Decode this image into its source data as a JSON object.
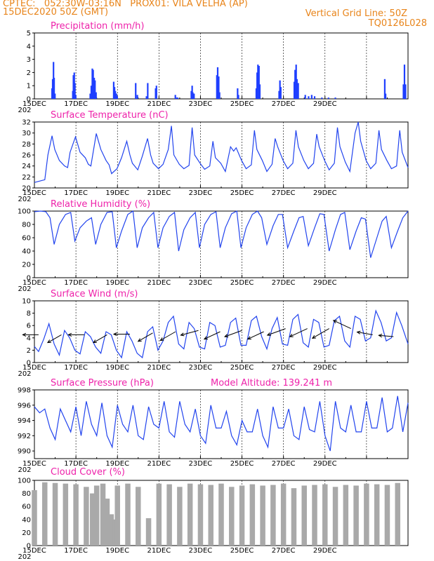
{
  "header": {
    "line1": "CPTEC:   052:30W-03:16N   PROX01: VILA VELHA (AP)",
    "line2": "15DEC2020 50Z (GMT)",
    "grid_note": "Vertical Grid Line: 50Z",
    "run_id": "TQ0126L028"
  },
  "chart_data": [
    {
      "type": "bar",
      "title": "Precipitation (mm/h)",
      "ylim": [
        0,
        5
      ],
      "yticks": [
        "0",
        "1",
        "2",
        "3",
        "4",
        "5"
      ],
      "x_tick_labels": [
        "15DEC",
        "17DEC",
        "19DEC",
        "21DEC",
        "23DEC",
        "25DEC",
        "27DEC",
        "29DEC"
      ],
      "x_year_label": "202",
      "color": "#1f3fff",
      "x_days": [
        0.85,
        0.88,
        0.92,
        0.95,
        0.99,
        1.85,
        1.88,
        1.92,
        1.95,
        1.99,
        2.69,
        2.74,
        2.79,
        2.83,
        2.88,
        2.92,
        2.97,
        3.82,
        3.86,
        3.9,
        3.95,
        3.99,
        4.88,
        4.96,
        5.4,
        5.46,
        5.84,
        5.88,
        6.79,
        6.86,
        6.9,
        7.56,
        7.6,
        7.63,
        7.69,
        8.79,
        8.83,
        8.88,
        8.92,
        9.79,
        9.83,
        10.69,
        10.73,
        10.77,
        10.82,
        10.86,
        11.79,
        11.83,
        11.87,
        12.52,
        12.56,
        12.61,
        12.65,
        12.71,
        13.05,
        13.21,
        13.36,
        13.5,
        13.85,
        14.17,
        14.5,
        16.88,
        16.92,
        17.78,
        17.83,
        17.88
      ],
      "values": [
        0.8,
        1.5,
        2.8,
        1.6,
        0.4,
        0.6,
        1.8,
        2.0,
        1.2,
        0.3,
        0.4,
        1.0,
        2.3,
        2.2,
        1.6,
        1.4,
        0.5,
        1.3,
        0.9,
        0.6,
        0.4,
        0.2,
        1.2,
        0.3,
        0.2,
        1.2,
        0.8,
        1.0,
        0.3,
        0.1,
        0.1,
        0.6,
        1.0,
        0.5,
        0.4,
        1.8,
        2.4,
        1.7,
        0.5,
        0.8,
        0.3,
        0.8,
        2.0,
        2.6,
        2.5,
        1.1,
        0.6,
        1.4,
        0.9,
        1.3,
        2.2,
        2.6,
        1.5,
        1.2,
        0.3,
        0.2,
        0.3,
        0.2,
        0.1,
        0.1,
        0.1,
        1.5,
        0.4,
        1.1,
        2.6,
        1.1
      ]
    },
    {
      "type": "line",
      "title": "Surface Temperature (nC)",
      "ylim": [
        20,
        32
      ],
      "yticks": [
        "20",
        "22",
        "24",
        "26",
        "28",
        "30",
        "32"
      ],
      "x_tick_labels": [
        "15DEC",
        "17DEC",
        "19DEC",
        "21DEC",
        "23DEC",
        "25DEC",
        "27DEC",
        "29DEC"
      ],
      "x_year_label": "202",
      "color": "#2244ee",
      "x_days": [
        0.0,
        0.5,
        0.65,
        0.85,
        0.98,
        1.2,
        1.45,
        1.6,
        1.72,
        1.98,
        2.2,
        2.45,
        2.6,
        2.72,
        2.98,
        3.2,
        3.45,
        3.6,
        3.72,
        3.98,
        4.2,
        4.45,
        4.6,
        4.72,
        4.98,
        5.2,
        5.45,
        5.6,
        5.72,
        5.98,
        6.2,
        6.45,
        6.6,
        6.72,
        6.98,
        7.2,
        7.45,
        7.6,
        7.72,
        7.98,
        8.2,
        8.45,
        8.6,
        8.72,
        8.98,
        9.2,
        9.45,
        9.6,
        9.72,
        9.98,
        10.2,
        10.45,
        10.6,
        10.72,
        10.98,
        11.2,
        11.45,
        11.6,
        11.72,
        11.98,
        12.2,
        12.45,
        12.6,
        12.72,
        12.98,
        13.2,
        13.45,
        13.6,
        13.72,
        13.98,
        14.2,
        14.45,
        14.6,
        14.72,
        14.98,
        15.2,
        15.45,
        15.6,
        15.72,
        15.98,
        16.2,
        16.45,
        16.6,
        16.72,
        16.98,
        17.2,
        17.45,
        17.6,
        17.72,
        18.0
      ],
      "values": [
        21.0,
        21.5,
        26.0,
        29.5,
        27.0,
        25.0,
        24.0,
        23.7,
        26.5,
        29.3,
        26.5,
        25.5,
        24.3,
        24.0,
        29.9,
        27.0,
        25.0,
        24.2,
        22.6,
        23.5,
        25.5,
        28.5,
        26.0,
        24.5,
        23.3,
        25.8,
        29.0,
        26.0,
        24.5,
        23.5,
        24.3,
        27.0,
        31.3,
        26.0,
        24.3,
        23.5,
        24.1,
        31.0,
        26.0,
        24.5,
        23.4,
        24.0,
        28.5,
        25.5,
        24.5,
        23.0,
        27.5,
        26.7,
        27.3,
        25.0,
        23.5,
        24.2,
        30.5,
        27.0,
        25.0,
        23.0,
        24.3,
        29.0,
        27.5,
        25.0,
        23.5,
        24.5,
        30.5,
        27.5,
        25.0,
        23.5,
        24.5,
        29.8,
        27.5,
        25.0,
        23.3,
        24.5,
        31.0,
        27.5,
        24.7,
        23.0,
        30.0,
        32.0,
        28.5,
        25.0,
        23.5,
        24.5,
        30.5,
        27.0,
        25.0,
        23.5,
        24.0,
        30.5,
        26.5,
        23.7
      ]
    },
    {
      "type": "line",
      "title": "Relative Humidity (%)",
      "ylim": [
        0,
        100
      ],
      "yticks": [
        "0",
        "20",
        "40",
        "60",
        "80",
        "100"
      ],
      "x_tick_labels": [
        "15DEC",
        "17DEC",
        "19DEC",
        "21DEC",
        "23DEC",
        "25DEC",
        "27DEC",
        "29DEC"
      ],
      "x_year_label": "202",
      "color": "#2244ee",
      "x_days": [
        0.0,
        0.3,
        0.55,
        0.75,
        0.95,
        1.2,
        1.5,
        1.75,
        1.95,
        2.2,
        2.5,
        2.75,
        2.95,
        3.2,
        3.5,
        3.75,
        3.95,
        4.2,
        4.5,
        4.75,
        4.95,
        5.2,
        5.5,
        5.75,
        5.95,
        6.2,
        6.5,
        6.75,
        6.95,
        7.2,
        7.5,
        7.75,
        7.95,
        8.2,
        8.5,
        8.75,
        8.95,
        9.2,
        9.5,
        9.75,
        9.95,
        10.2,
        10.5,
        10.75,
        10.95,
        11.2,
        11.5,
        11.75,
        11.95,
        12.2,
        12.5,
        12.75,
        12.95,
        13.2,
        13.5,
        13.75,
        13.95,
        14.2,
        14.5,
        14.75,
        14.95,
        15.2,
        15.5,
        15.75,
        15.95,
        16.2,
        16.5,
        16.75,
        16.95,
        17.2,
        17.5,
        17.75,
        18.0
      ],
      "values": [
        99,
        100,
        99,
        90,
        50,
        80,
        95,
        98,
        55,
        75,
        85,
        90,
        50,
        80,
        98,
        99,
        45,
        70,
        95,
        100,
        45,
        75,
        90,
        98,
        45,
        75,
        92,
        98,
        40,
        72,
        90,
        98,
        45,
        80,
        95,
        99,
        45,
        75,
        96,
        100,
        45,
        75,
        95,
        100,
        90,
        50,
        78,
        95,
        95,
        45,
        70,
        90,
        92,
        48,
        75,
        96,
        95,
        40,
        72,
        95,
        98,
        42,
        70,
        90,
        88,
        30,
        60,
        85,
        92,
        45,
        70,
        90,
        100
      ]
    },
    {
      "type": "line",
      "title": "Surface Wind (m/s)",
      "ylim": [
        0,
        10
      ],
      "yticks": [
        "0",
        "2",
        "4",
        "6",
        "8",
        "10"
      ],
      "x_tick_labels": [
        "15DEC",
        "17DEC",
        "19DEC",
        "21DEC",
        "23DEC",
        "25DEC",
        "27DEC",
        "29DEC"
      ],
      "x_year_label": "202",
      "color": "#2244ee",
      "x_days": [
        0.0,
        0.2,
        0.45,
        0.7,
        0.95,
        1.2,
        1.45,
        1.7,
        1.95,
        2.2,
        2.45,
        2.7,
        2.95,
        3.2,
        3.45,
        3.7,
        3.95,
        4.2,
        4.45,
        4.7,
        4.95,
        5.2,
        5.45,
        5.7,
        5.95,
        6.2,
        6.45,
        6.7,
        6.95,
        7.2,
        7.45,
        7.7,
        7.95,
        8.2,
        8.45,
        8.7,
        8.95,
        9.2,
        9.45,
        9.7,
        9.95,
        10.2,
        10.45,
        10.7,
        10.95,
        11.2,
        11.45,
        11.7,
        11.95,
        12.2,
        12.45,
        12.7,
        12.95,
        13.2,
        13.45,
        13.7,
        13.95,
        14.2,
        14.45,
        14.7,
        14.95,
        15.2,
        15.45,
        15.7,
        15.95,
        16.2,
        16.45,
        16.7,
        16.95,
        17.2,
        17.45,
        17.7,
        18.0
      ],
      "values": [
        2.6,
        1.8,
        3.8,
        6.3,
        3.0,
        1.2,
        5.2,
        4.0,
        2.0,
        1.4,
        5.0,
        4.2,
        2.5,
        1.5,
        5.0,
        4.5,
        2.0,
        0.8,
        5.0,
        3.5,
        1.5,
        0.8,
        5.0,
        5.8,
        2.0,
        3.5,
        6.5,
        7.5,
        3.0,
        2.2,
        6.5,
        5.5,
        2.5,
        2.2,
        6.5,
        6.0,
        2.5,
        2.8,
        6.5,
        7.2,
        2.8,
        2.8,
        6.8,
        7.5,
        4.2,
        2.2,
        5.5,
        7.3,
        3.0,
        2.8,
        7.0,
        7.8,
        3.2,
        2.5,
        7.0,
        6.5,
        2.5,
        2.8,
        6.8,
        7.5,
        3.5,
        2.5,
        7.5,
        7.0,
        3.5,
        4.0,
        8.4,
        6.5,
        3.5,
        4.0,
        8.1,
        6.0,
        3.0
      ],
      "arrows": {
        "x_days": [
          0.2,
          1.3,
          2.4,
          3.5,
          4.6,
          5.7,
          6.8,
          7.9,
          8.95,
          10.0,
          11.05,
          12.1,
          13.15,
          14.2,
          15.25,
          16.3,
          17.3
        ],
        "from_dir_deg": [
          90,
          60,
          90,
          60,
          90,
          60,
          60,
          75,
          65,
          70,
          65,
          70,
          65,
          60,
          115,
          100,
          95
        ],
        "speed": [
          4.5,
          4.5,
          4.5,
          4.5,
          4.6,
          4.8,
          5.0,
          5.2,
          5.0,
          5.2,
          5.0,
          5.5,
          5.5,
          5.5,
          5.5,
          4.5,
          4.2
        ]
      }
    },
    {
      "type": "line",
      "title": "Surface Pressure (hPa)",
      "annotation": "Model Altitude: 139.241  m",
      "ylim": [
        989,
        998
      ],
      "yticks": [
        "990",
        "992",
        "994",
        "996",
        "998"
      ],
      "x_tick_labels": [
        "15DEC",
        "17DEC",
        "19DEC",
        "21DEC",
        "23DEC",
        "25DEC",
        "27DEC",
        "29DEC"
      ],
      "x_year_label": "202",
      "color": "#2244ee",
      "x_days": [
        0.0,
        0.25,
        0.5,
        0.75,
        1.0,
        1.25,
        1.5,
        1.75,
        2.0,
        2.25,
        2.5,
        2.75,
        3.0,
        3.25,
        3.5,
        3.75,
        4.0,
        4.25,
        4.5,
        4.75,
        5.0,
        5.25,
        5.5,
        5.75,
        6.0,
        6.25,
        6.5,
        6.75,
        7.0,
        7.25,
        7.5,
        7.75,
        8.0,
        8.25,
        8.5,
        8.75,
        9.0,
        9.25,
        9.5,
        9.75,
        10.0,
        10.25,
        10.5,
        10.75,
        11.0,
        11.25,
        11.5,
        11.75,
        12.0,
        12.25,
        12.5,
        12.75,
        13.0,
        13.25,
        13.5,
        13.75,
        14.0,
        14.25,
        14.5,
        14.75,
        15.0,
        15.25,
        15.5,
        15.75,
        16.0,
        16.25,
        16.5,
        16.75,
        17.0,
        17.25,
        17.5,
        17.75,
        18.0
      ],
      "values": [
        995.8,
        995.0,
        995.5,
        993.0,
        991.5,
        995.5,
        994.0,
        992.5,
        995.8,
        992.0,
        996.5,
        993.5,
        992.0,
        996.3,
        992.0,
        990.5,
        996.0,
        993.5,
        992.5,
        996.0,
        992.0,
        991.5,
        995.8,
        993.5,
        993.0,
        996.5,
        992.5,
        991.8,
        996.5,
        993.5,
        992.5,
        995.5,
        992.0,
        991.0,
        996.0,
        993.0,
        993.0,
        995.2,
        992.0,
        990.8,
        994.0,
        992.5,
        992.5,
        995.5,
        992.0,
        990.5,
        995.8,
        993.0,
        993.0,
        995.5,
        992.0,
        991.5,
        995.8,
        992.8,
        992.5,
        996.5,
        992.0,
        990.0,
        996.5,
        993.0,
        992.5,
        996.0,
        992.5,
        992.5,
        996.5,
        993.0,
        993.0,
        997.0,
        992.5,
        993.0,
        997.2,
        992.5,
        996.3
      ]
    },
    {
      "type": "bar",
      "title": "Cloud Cover (%)",
      "ylim": [
        0,
        100
      ],
      "yticks": [
        "0",
        "20",
        "40",
        "60",
        "80",
        "100"
      ],
      "x_tick_labels": [
        "15DEC",
        "17DEC",
        "19DEC",
        "21DEC",
        "23DEC",
        "25DEC",
        "27DEC",
        "29DEC"
      ],
      "x_year_label": "202",
      "color": "#a9a9a9",
      "x_days": [
        0.0,
        0.5,
        1.0,
        1.5,
        2.0,
        2.5,
        2.8,
        3.0,
        3.3,
        3.5,
        3.7,
        3.9,
        4.0,
        4.5,
        5.0,
        5.5,
        6.0,
        6.5,
        7.0,
        7.5,
        8.0,
        8.5,
        9.0,
        9.5,
        10.0,
        10.5,
        11.0,
        11.5,
        12.0,
        12.5,
        13.0,
        13.5,
        14.0,
        14.5,
        15.0,
        15.5,
        16.0,
        16.5,
        17.0,
        17.5
      ],
      "values": [
        85,
        97,
        96,
        95,
        94,
        90,
        80,
        92,
        95,
        72,
        48,
        40,
        92,
        95,
        90,
        42,
        95,
        94,
        90,
        95,
        94,
        93,
        95,
        90,
        92,
        94,
        92,
        93,
        95,
        88,
        92,
        93,
        94,
        90,
        93,
        92,
        95,
        94,
        93,
        96
      ]
    }
  ]
}
